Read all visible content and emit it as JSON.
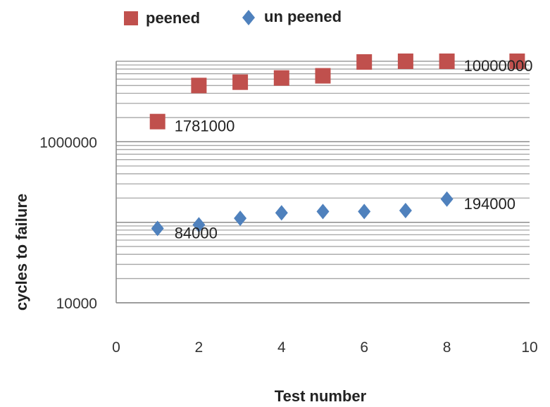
{
  "chart_data": {
    "type": "scatter",
    "xlabel": "Test number",
    "ylabel": "cycles to failure",
    "xlim": [
      0,
      10
    ],
    "ylim": [
      10000,
      10000000
    ],
    "yscale": "log",
    "x_ticks": [
      "0",
      "2",
      "4",
      "6",
      "8",
      "10"
    ],
    "y_ticks": [
      "10000",
      "1000000"
    ],
    "grid": "horizontal",
    "legend_position": "top",
    "series": [
      {
        "name": "peened",
        "marker": "square",
        "color": "#c0504d",
        "x": [
          1,
          2,
          3,
          4,
          5,
          6,
          7,
          8,
          9.7
        ],
        "y": [
          1781000,
          5000000,
          5500000,
          6200000,
          6600000,
          9800000,
          10000000,
          10000000,
          10000000
        ]
      },
      {
        "name": "un peened",
        "marker": "diamond",
        "color": "#4f81bd",
        "x": [
          1,
          2,
          3,
          4,
          5,
          6,
          7,
          8
        ],
        "y": [
          84000,
          93000,
          112000,
          131000,
          136000,
          136000,
          140000,
          194000
        ]
      }
    ],
    "data_labels": [
      {
        "text": "1781000",
        "series": 0,
        "index": 0
      },
      {
        "text": "10000000",
        "series": 0,
        "index": 7
      },
      {
        "text": "84000",
        "series": 1,
        "index": 0
      },
      {
        "text": "194000",
        "series": 1,
        "index": 7
      }
    ]
  }
}
